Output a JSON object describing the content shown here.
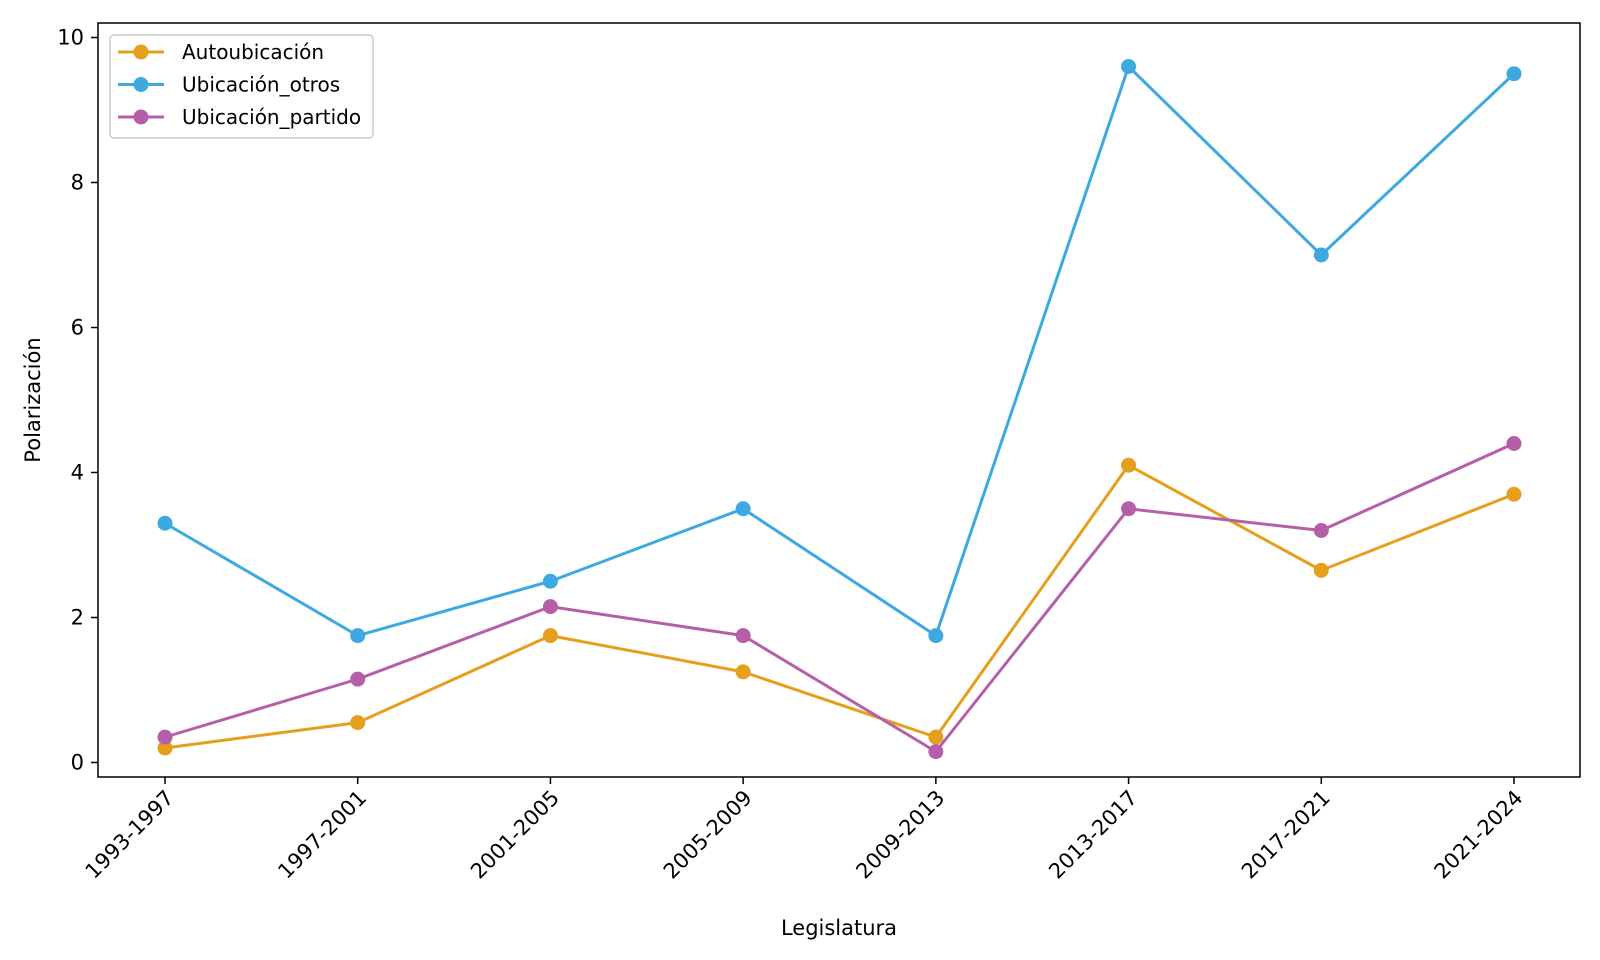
{
  "chart_data": {
    "type": "line",
    "title": "",
    "xlabel": "Legislatura",
    "ylabel": "Polarización",
    "categories": [
      "1993-1997",
      "1997-2001",
      "2001-2005",
      "2005-2009",
      "2009-2013",
      "2013-2017",
      "2017-2021",
      "2021-2024"
    ],
    "ylim": [
      -0.2,
      10.2
    ],
    "yticks": [
      0,
      2,
      4,
      6,
      8,
      10
    ],
    "grid": false,
    "legend_position": "top-left",
    "marker": "circle",
    "series": [
      {
        "name": "Autoubicación",
        "color": "#E69F1C",
        "values": [
          0.2,
          0.55,
          1.75,
          1.25,
          0.35,
          4.1,
          2.65,
          3.7
        ]
      },
      {
        "name": "Ubicación_otros",
        "color": "#3EA9E0",
        "values": [
          3.3,
          1.75,
          2.5,
          3.5,
          1.75,
          9.6,
          7.0,
          9.5
        ]
      },
      {
        "name": "Ubicación_partido",
        "color": "#B55FA8",
        "values": [
          0.35,
          1.15,
          2.15,
          1.75,
          0.15,
          3.5,
          3.2,
          4.4
        ]
      }
    ]
  }
}
